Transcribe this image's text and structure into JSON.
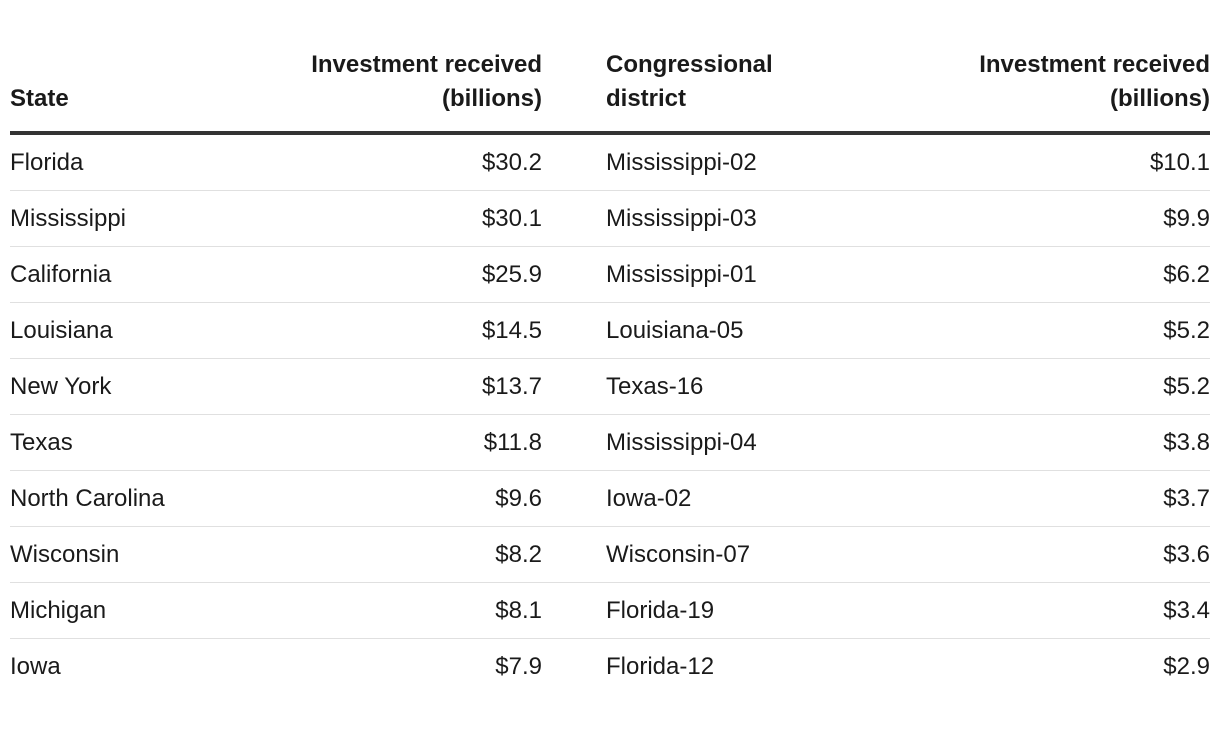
{
  "header": {
    "col_state": "State",
    "col_investment_left": "Investment received\n(billions)",
    "col_district": "Congressional\ndistrict",
    "col_investment_right": "Investment received\n(billions)"
  },
  "rows": [
    {
      "state": "Florida",
      "state_value": "$30.2",
      "district": "Mississippi-02",
      "district_value": "$10.1"
    },
    {
      "state": "Mississippi",
      "state_value": "$30.1",
      "district": "Mississippi-03",
      "district_value": "$9.9"
    },
    {
      "state": "California",
      "state_value": "$25.9",
      "district": "Mississippi-01",
      "district_value": "$6.2"
    },
    {
      "state": "Louisiana",
      "state_value": "$14.5",
      "district": "Louisiana-05",
      "district_value": "$5.2"
    },
    {
      "state": "New York",
      "state_value": "$13.7",
      "district": "Texas-16",
      "district_value": "$5.2"
    },
    {
      "state": "Texas",
      "state_value": "$11.8",
      "district": "Mississippi-04",
      "district_value": "$3.8"
    },
    {
      "state": "North Carolina",
      "state_value": "$9.6",
      "district": "Iowa-02",
      "district_value": "$3.7"
    },
    {
      "state": "Wisconsin",
      "state_value": "$8.2",
      "district": "Wisconsin-07",
      "district_value": "$3.6"
    },
    {
      "state": "Michigan",
      "state_value": "$8.1",
      "district": "Florida-19",
      "district_value": "$3.4"
    },
    {
      "state": "Iowa",
      "state_value": "$7.9",
      "district": "Florida-12",
      "district_value": "$2.9"
    }
  ],
  "colors": {
    "text": "#1a1a1a",
    "header_border": "#333333",
    "row_border": "#e0e0e0",
    "background": "#ffffff"
  },
  "chart_data": [
    {
      "type": "table",
      "title": "Investment received by state",
      "columns": [
        "State",
        "Investment received (billions)"
      ],
      "unit": "USD billions",
      "rows": [
        [
          "Florida",
          30.2
        ],
        [
          "Mississippi",
          30.1
        ],
        [
          "California",
          25.9
        ],
        [
          "Louisiana",
          14.5
        ],
        [
          "New York",
          13.7
        ],
        [
          "Texas",
          11.8
        ],
        [
          "North Carolina",
          9.6
        ],
        [
          "Wisconsin",
          8.2
        ],
        [
          "Michigan",
          8.1
        ],
        [
          "Iowa",
          7.9
        ]
      ]
    },
    {
      "type": "table",
      "title": "Investment received by congressional district",
      "columns": [
        "Congressional district",
        "Investment received (billions)"
      ],
      "unit": "USD billions",
      "rows": [
        [
          "Mississippi-02",
          10.1
        ],
        [
          "Mississippi-03",
          9.9
        ],
        [
          "Mississippi-01",
          6.2
        ],
        [
          "Louisiana-05",
          5.2
        ],
        [
          "Texas-16",
          5.2
        ],
        [
          "Mississippi-04",
          3.8
        ],
        [
          "Iowa-02",
          3.7
        ],
        [
          "Wisconsin-07",
          3.6
        ],
        [
          "Florida-19",
          3.4
        ],
        [
          "Florida-12",
          2.9
        ]
      ]
    }
  ]
}
